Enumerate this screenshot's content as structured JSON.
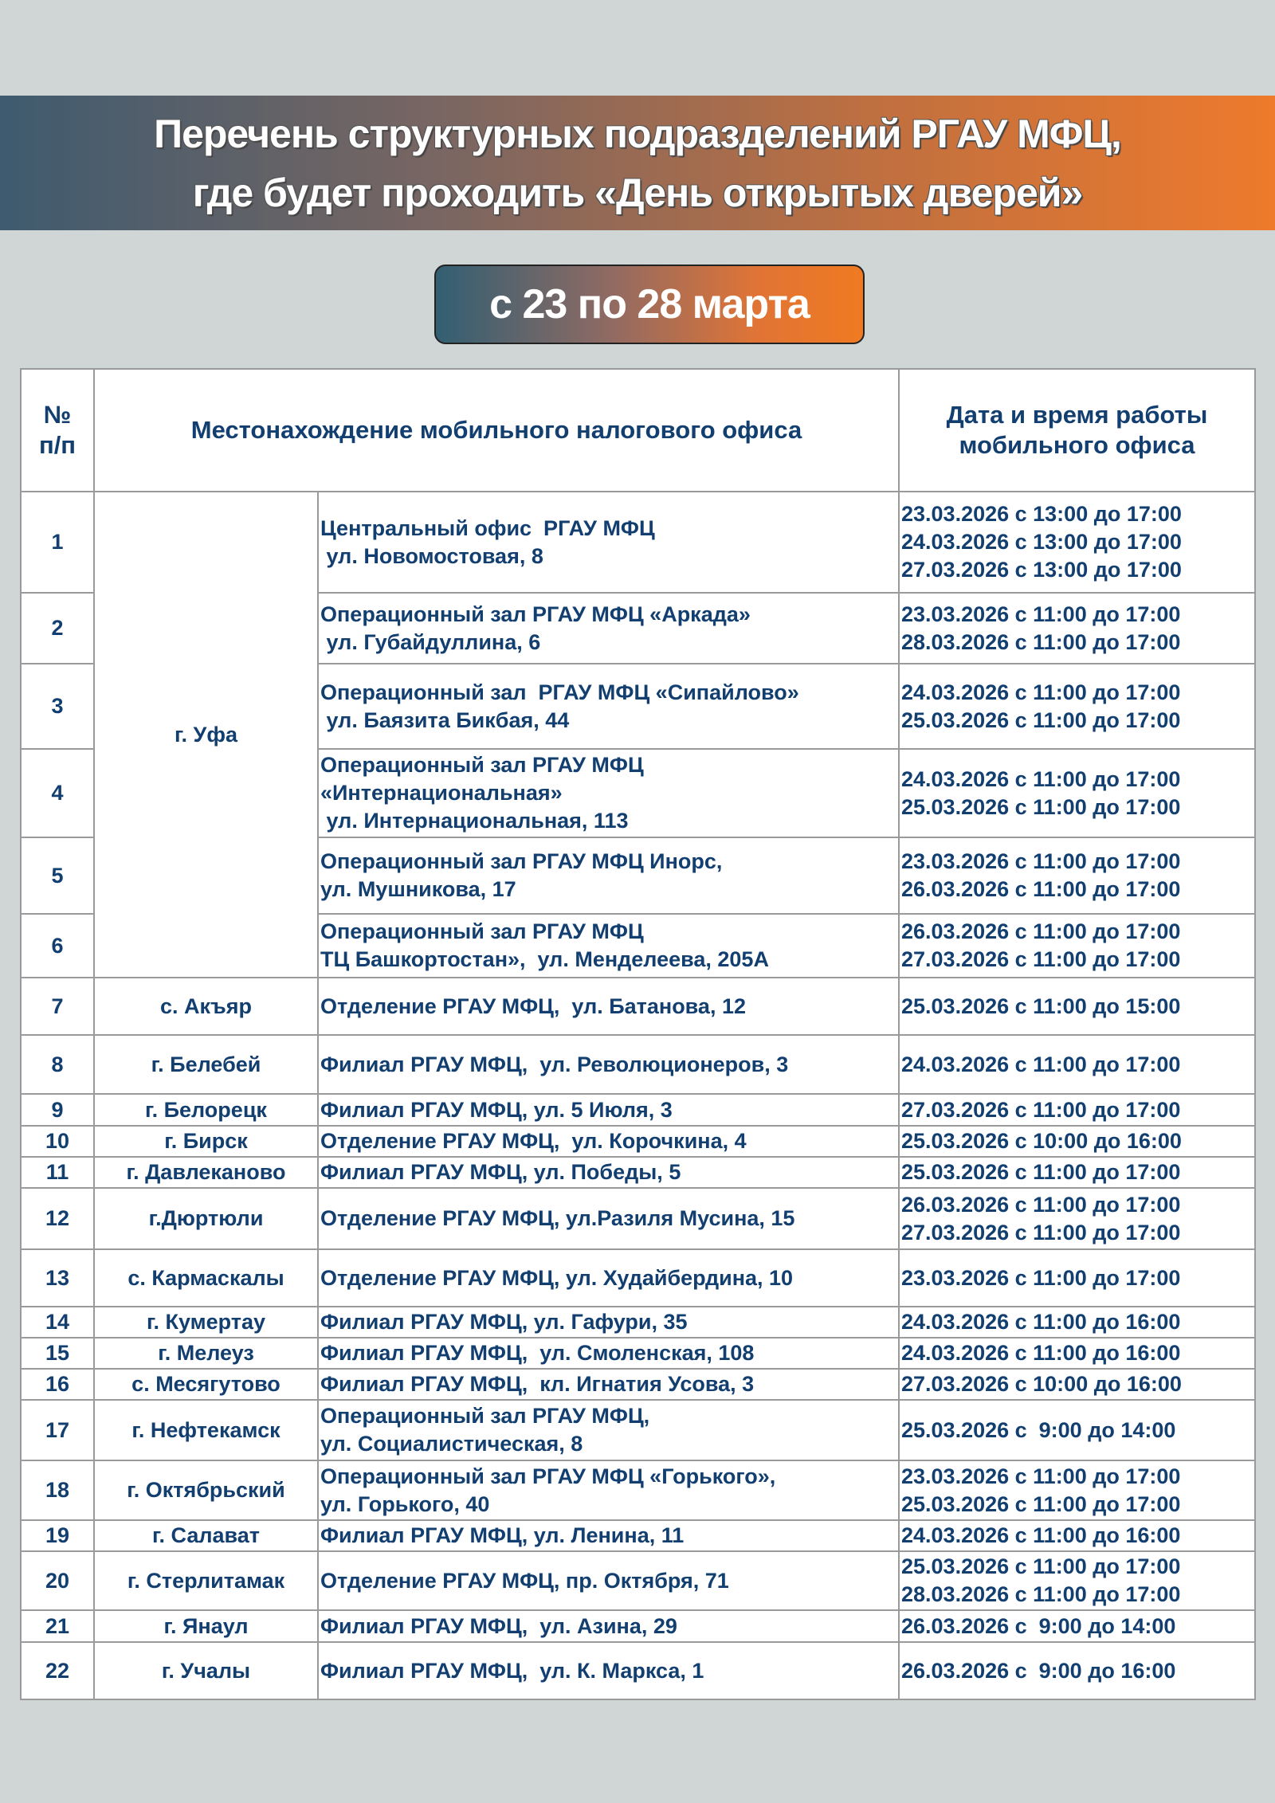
{
  "header": {
    "title_lines": [
      "Перечень структурных подразделений РГАУ МФЦ,",
      "где будет проходить «День открытых дверей»"
    ],
    "period": "с 23 по 28 марта",
    "colors": {
      "gradient_start": "#3e5b6f",
      "gradient_end": "#ee7a2c",
      "text": "#123f70",
      "background": "#d0d6d6"
    }
  },
  "table": {
    "columns": {
      "number": "№\nп/п",
      "location": "Местонахождение мобильного налогового офиса",
      "datetime": "Дата и время работы\nмобильного офиса"
    },
    "rows": [
      {
        "n": "1",
        "city": "г. Уфа",
        "address": [
          "Центральный офис  РГАУ МФЦ",
          " ул. Новомостовая, 8"
        ],
        "dates": [
          "23.03.2026 с 13:00 до 17:00",
          "24.03.2026 с 13:00 до 17:00",
          "27.03.2026 с 13:00 до 17:00"
        ]
      },
      {
        "n": "2",
        "city": "",
        "address": [
          "Операционный зал РГАУ МФЦ «Аркада»",
          " ул. Губайдуллина, 6"
        ],
        "dates": [
          "23.03.2026 с 11:00 до 17:00",
          "28.03.2026 с 11:00 до 17:00"
        ]
      },
      {
        "n": "3",
        "city": "",
        "address": [
          "Операционный зал  РГАУ МФЦ «Сипайлово»",
          " ул. Баязита Бикбая, 44"
        ],
        "dates": [
          "24.03.2026 с 11:00 до 17:00",
          "25.03.2026 с 11:00 до 17:00"
        ]
      },
      {
        "n": "4",
        "city": "",
        "address": [
          "Операционный зал РГАУ МФЦ",
          "«Интернациональная»",
          " ул. Интернациональная, 113"
        ],
        "dates": [
          "24.03.2026 с 11:00 до 17:00",
          "25.03.2026 с 11:00 до 17:00"
        ]
      },
      {
        "n": "5",
        "city": "",
        "address": [
          "Операционный зал РГАУ МФЦ Инорс,",
          "ул. Мушникова, 17"
        ],
        "dates": [
          "23.03.2026 с 11:00 до 17:00",
          "26.03.2026 с 11:00 до 17:00"
        ]
      },
      {
        "n": "6",
        "city": "",
        "address": [
          "Операционный зал РГАУ МФЦ",
          "ТЦ Башкортостан»,  ул. Менделеева, 205А"
        ],
        "dates": [
          "26.03.2026 с 11:00 до 17:00",
          "27.03.2026 с 11:00 до 17:00"
        ]
      },
      {
        "n": "7",
        "city": "с. Акъяр",
        "address": [
          "Отделение РГАУ МФЦ,  ул. Батанова, 12"
        ],
        "dates": [
          "25.03.2026 с 11:00 до 15:00"
        ]
      },
      {
        "n": "8",
        "city": "г. Белебей",
        "address": [
          "Филиал РГАУ МФЦ,  ул. Революционеров, 3"
        ],
        "dates": [
          "24.03.2026 с 11:00 до 17:00"
        ]
      },
      {
        "n": "9",
        "city": "г. Белорецк",
        "address": [
          "Филиал РГАУ МФЦ, ул. 5 Июля, 3"
        ],
        "dates": [
          "27.03.2026 с 11:00 до 17:00"
        ]
      },
      {
        "n": "10",
        "city": "г. Бирск",
        "address": [
          "Отделение РГАУ МФЦ,  ул. Корочкина, 4"
        ],
        "dates": [
          "25.03.2026 с 10:00 до 16:00"
        ]
      },
      {
        "n": "11",
        "city": "г. Давлеканово",
        "address": [
          "Филиал РГАУ МФЦ, ул. Победы, 5"
        ],
        "dates": [
          "25.03.2026 с 11:00 до 17:00"
        ]
      },
      {
        "n": "12",
        "city": "г.Дюртюли",
        "address": [
          "Отделение РГАУ МФЦ, ул.Разиля Мусина, 15"
        ],
        "dates": [
          "26.03.2026 с 11:00 до 17:00",
          "27.03.2026 с 11:00 до 17:00"
        ]
      },
      {
        "n": "13",
        "city": "с. Кармаскалы",
        "address": [
          "Отделение РГАУ МФЦ, ул. Худайбердина, 10"
        ],
        "dates": [
          "23.03.2026 с 11:00 до 17:00"
        ]
      },
      {
        "n": "14",
        "city": "г. Кумертау",
        "address": [
          "Филиал РГАУ МФЦ, ул. Гафури, 35"
        ],
        "dates": [
          "24.03.2026 с 11:00 до 16:00"
        ]
      },
      {
        "n": "15",
        "city": "г. Мелеуз",
        "address": [
          "Филиал РГАУ МФЦ,  ул. Смоленская, 108"
        ],
        "dates": [
          "24.03.2026 с 11:00 до 16:00"
        ]
      },
      {
        "n": "16",
        "city": "с. Месягутово",
        "address": [
          "Филиал РГАУ МФЦ,  кл. Игнатия Усова, 3"
        ],
        "dates": [
          "27.03.2026 с 10:00 до 16:00"
        ]
      },
      {
        "n": "17",
        "city": "г. Нефтекамск",
        "address": [
          "Операционный зал РГАУ МФЦ,",
          "ул. Социалистическая, 8"
        ],
        "dates": [
          "25.03.2026 с  9:00 до 14:00"
        ]
      },
      {
        "n": "18",
        "city": "г. Октябрьский",
        "address": [
          "Операционный зал РГАУ МФЦ «Горького»,",
          "ул. Горького, 40"
        ],
        "dates": [
          "23.03.2026 с 11:00 до 17:00",
          "25.03.2026 с 11:00 до 17:00"
        ]
      },
      {
        "n": "19",
        "city": "г. Салават",
        "address": [
          "Филиал РГАУ МФЦ, ул. Ленина, 11"
        ],
        "dates": [
          "24.03.2026 с 11:00 до 16:00"
        ]
      },
      {
        "n": "20",
        "city": "г. Стерлитамак",
        "address": [
          "Отделение РГАУ МФЦ, пр. Октября, 71"
        ],
        "dates": [
          "25.03.2026 с 11:00 до 17:00",
          "28.03.2026 с 11:00 до 17:00"
        ]
      },
      {
        "n": "21",
        "city": "г. Янаул",
        "address": [
          "Филиал РГАУ МФЦ,  ул. Азина, 29"
        ],
        "dates": [
          "26.03.2026 с  9:00 до 14:00"
        ]
      },
      {
        "n": "22",
        "city": "г. Учалы",
        "address": [
          "Филиал РГАУ МФЦ,  ул. К. Маркса, 1"
        ],
        "dates": [
          "26.03.2026 с  9:00 до 16:00"
        ]
      }
    ]
  }
}
